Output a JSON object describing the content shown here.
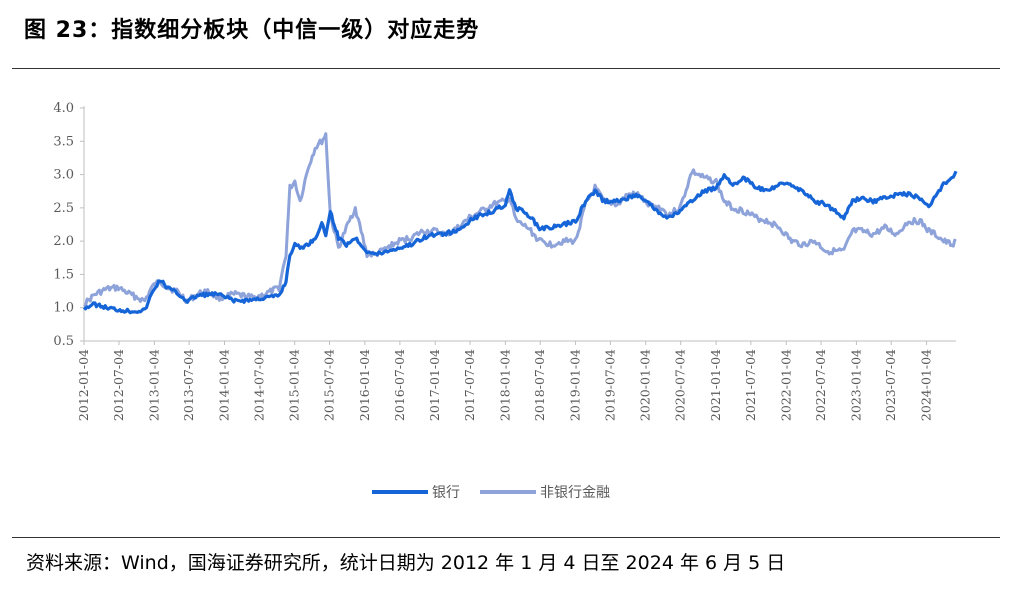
{
  "figure": {
    "title": "图 23：指数细分板块（中信一级）对应走势",
    "source": "资料来源：Wind，国海证券研究所，统计日期为 2012 年 1 月 4 日至 2024 年 6 月 5 日"
  },
  "chart_data": {
    "type": "line",
    "ylim": [
      0.5,
      4.0
    ],
    "yticks": [
      "4.0",
      "3.5",
      "3.0",
      "2.5",
      "2.0",
      "1.5",
      "1.0",
      "0.5"
    ],
    "x_tick_labels": [
      "2012-01-04",
      "2012-07-04",
      "2013-01-04",
      "2013-07-04",
      "2014-01-04",
      "2014-07-04",
      "2015-01-04",
      "2015-07-04",
      "2016-01-04",
      "2016-07-04",
      "2017-01-04",
      "2017-07-04",
      "2018-01-04",
      "2018-07-04",
      "2019-01-04",
      "2019-07-04",
      "2020-01-04",
      "2020-07-04",
      "2021-01-04",
      "2021-07-04",
      "2022-01-04",
      "2022-07-04",
      "2023-01-04",
      "2023-07-04",
      "2024-01-04"
    ],
    "legend_position": "bottom",
    "grid": false,
    "series": [
      {
        "name": "银行",
        "color": "#1565D8",
        "x": [
          "2012-01-04",
          "2012-03-01",
          "2012-05-01",
          "2012-07-01",
          "2012-09-01",
          "2012-11-15",
          "2012-12-20",
          "2013-02-01",
          "2013-03-15",
          "2013-05-01",
          "2013-06-25",
          "2013-08-15",
          "2013-10-01",
          "2013-12-01",
          "2014-03-01",
          "2014-06-01",
          "2014-08-01",
          "2014-10-15",
          "2014-11-20",
          "2014-12-10",
          "2015-01-05",
          "2015-02-01",
          "2015-03-15",
          "2015-04-20",
          "2015-05-25",
          "2015-06-15",
          "2015-07-08",
          "2015-08-20",
          "2015-09-30",
          "2015-11-15",
          "2016-01-15",
          "2016-03-01",
          "2016-05-01",
          "2016-07-01",
          "2016-09-01",
          "2016-11-01",
          "2017-01-04",
          "2017-03-01",
          "2017-05-01",
          "2017-07-01",
          "2017-09-01",
          "2017-11-01",
          "2018-01-04",
          "2018-01-26",
          "2018-03-01",
          "2018-05-01",
          "2018-07-01",
          "2018-09-01",
          "2018-11-01",
          "2019-01-04",
          "2019-02-25",
          "2019-04-15",
          "2019-06-01",
          "2019-08-15",
          "2019-10-01",
          "2019-12-01",
          "2020-01-10",
          "2020-03-20",
          "2020-05-01",
          "2020-07-01",
          "2020-09-01",
          "2020-11-01",
          "2021-01-04",
          "2021-02-15",
          "2021-04-01",
          "2021-06-01",
          "2021-08-01",
          "2021-10-01",
          "2021-12-01",
          "2022-02-01",
          "2022-04-01",
          "2022-06-01",
          "2022-08-01",
          "2022-10-31",
          "2022-12-15",
          "2023-02-01",
          "2023-04-01",
          "2023-06-01",
          "2023-08-01",
          "2023-10-01",
          "2023-12-01",
          "2024-01-15",
          "2024-02-20",
          "2024-04-01",
          "2024-05-15",
          "2024-06-05"
        ],
        "y": [
          1.0,
          1.05,
          1.0,
          0.97,
          0.95,
          0.96,
          1.2,
          1.42,
          1.3,
          1.22,
          1.1,
          1.18,
          1.2,
          1.2,
          1.1,
          1.12,
          1.15,
          1.18,
          1.4,
          1.8,
          1.95,
          1.9,
          1.95,
          2.05,
          2.25,
          2.1,
          2.45,
          2.05,
          1.95,
          2.05,
          1.85,
          1.8,
          1.85,
          1.9,
          1.95,
          2.05,
          2.1,
          2.12,
          2.15,
          2.3,
          2.4,
          2.45,
          2.55,
          2.75,
          2.5,
          2.4,
          2.2,
          2.2,
          2.25,
          2.3,
          2.6,
          2.75,
          2.6,
          2.6,
          2.65,
          2.7,
          2.6,
          2.4,
          2.35,
          2.45,
          2.6,
          2.75,
          2.8,
          3.0,
          2.85,
          2.95,
          2.8,
          2.75,
          2.85,
          2.85,
          2.75,
          2.6,
          2.55,
          2.35,
          2.6,
          2.65,
          2.6,
          2.65,
          2.7,
          2.7,
          2.65,
          2.5,
          2.7,
          2.85,
          2.95,
          3.05
        ]
      },
      {
        "name": "非银行金融",
        "color": "#8EA3DA",
        "x": [
          "2012-01-04",
          "2012-03-01",
          "2012-05-01",
          "2012-07-01",
          "2012-09-01",
          "2012-11-15",
          "2012-12-20",
          "2013-02-01",
          "2013-03-15",
          "2013-05-01",
          "2013-06-25",
          "2013-08-15",
          "2013-10-01",
          "2013-12-01",
          "2014-03-01",
          "2014-06-01",
          "2014-08-01",
          "2014-10-15",
          "2014-11-20",
          "2014-12-10",
          "2015-01-05",
          "2015-02-01",
          "2015-03-15",
          "2015-04-20",
          "2015-05-25",
          "2015-06-15",
          "2015-07-08",
          "2015-08-20",
          "2015-09-30",
          "2015-11-15",
          "2016-01-15",
          "2016-03-01",
          "2016-05-01",
          "2016-07-01",
          "2016-09-01",
          "2016-11-01",
          "2017-01-04",
          "2017-03-01",
          "2017-05-01",
          "2017-07-01",
          "2017-09-01",
          "2017-11-01",
          "2018-01-04",
          "2018-01-26",
          "2018-03-01",
          "2018-05-01",
          "2018-07-01",
          "2018-09-01",
          "2018-11-01",
          "2019-01-04",
          "2019-02-25",
          "2019-04-15",
          "2019-06-01",
          "2019-08-15",
          "2019-10-01",
          "2019-12-01",
          "2020-01-10",
          "2020-03-20",
          "2020-05-01",
          "2020-07-01",
          "2020-09-01",
          "2020-11-01",
          "2021-01-04",
          "2021-02-15",
          "2021-04-01",
          "2021-06-01",
          "2021-08-01",
          "2021-10-01",
          "2021-12-01",
          "2022-02-01",
          "2022-04-01",
          "2022-06-01",
          "2022-08-01",
          "2022-10-31",
          "2022-12-15",
          "2023-02-01",
          "2023-04-01",
          "2023-06-01",
          "2023-08-01",
          "2023-10-01",
          "2023-12-01",
          "2024-01-15",
          "2024-02-20",
          "2024-04-01",
          "2024-05-15",
          "2024-06-05"
        ],
        "y": [
          1.05,
          1.2,
          1.28,
          1.3,
          1.2,
          1.1,
          1.3,
          1.4,
          1.3,
          1.25,
          1.1,
          1.2,
          1.25,
          1.15,
          1.2,
          1.15,
          1.2,
          1.3,
          1.8,
          2.8,
          2.9,
          2.6,
          3.1,
          3.4,
          3.5,
          3.6,
          2.4,
          1.9,
          2.2,
          2.5,
          1.8,
          1.8,
          1.9,
          2.0,
          2.05,
          2.15,
          2.15,
          2.1,
          2.2,
          2.35,
          2.45,
          2.55,
          2.6,
          2.65,
          2.3,
          2.2,
          2.0,
          1.95,
          2.0,
          2.0,
          2.55,
          2.8,
          2.6,
          2.55,
          2.7,
          2.7,
          2.55,
          2.5,
          2.4,
          2.5,
          3.05,
          2.95,
          2.9,
          2.6,
          2.5,
          2.45,
          2.35,
          2.3,
          2.2,
          2.0,
          1.95,
          2.0,
          1.85,
          1.85,
          2.15,
          2.15,
          2.1,
          2.2,
          2.1,
          2.3,
          2.3,
          2.15,
          2.1,
          2.0,
          1.95,
          2.0
        ]
      }
    ]
  }
}
